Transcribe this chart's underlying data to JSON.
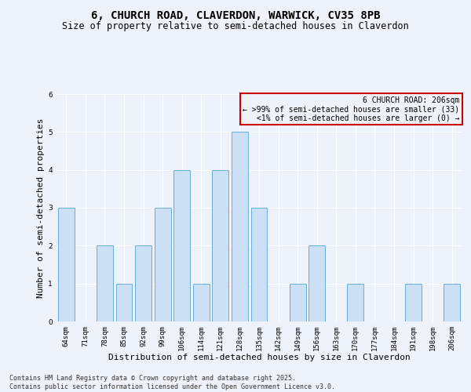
{
  "title": "6, CHURCH ROAD, CLAVERDON, WARWICK, CV35 8PB",
  "subtitle": "Size of property relative to semi-detached houses in Claverdon",
  "xlabel": "Distribution of semi-detached houses by size in Claverdon",
  "ylabel": "Number of semi-detached properties",
  "categories": [
    "64sqm",
    "71sqm",
    "78sqm",
    "85sqm",
    "92sqm",
    "99sqm",
    "106sqm",
    "114sqm",
    "121sqm",
    "128sqm",
    "135sqm",
    "142sqm",
    "149sqm",
    "156sqm",
    "163sqm",
    "170sqm",
    "177sqm",
    "184sqm",
    "191sqm",
    "198sqm",
    "206sqm"
  ],
  "values": [
    3,
    0,
    2,
    1,
    2,
    3,
    4,
    1,
    4,
    5,
    3,
    0,
    1,
    2,
    0,
    1,
    0,
    0,
    1,
    0,
    1
  ],
  "bar_color": "#cce0f5",
  "bar_edge_color": "#6aaed6",
  "annotation_text": "6 CHURCH ROAD: 206sqm\n← >99% of semi-detached houses are smaller (33)\n<1% of semi-detached houses are larger (0) →",
  "annotation_box_edgecolor": "#cc0000",
  "annotation_fontsize": 7,
  "ylim": [
    0,
    6
  ],
  "yticks": [
    0,
    1,
    2,
    3,
    4,
    5,
    6
  ],
  "background_color": "#eef2fa",
  "grid_color": "#ffffff",
  "footer_line1": "Contains HM Land Registry data © Crown copyright and database right 2025.",
  "footer_line2": "Contains public sector information licensed under the Open Government Licence v3.0.",
  "title_fontsize": 10,
  "subtitle_fontsize": 8.5,
  "xlabel_fontsize": 8,
  "ylabel_fontsize": 8,
  "tick_fontsize": 6.5,
  "footer_fontsize": 6
}
